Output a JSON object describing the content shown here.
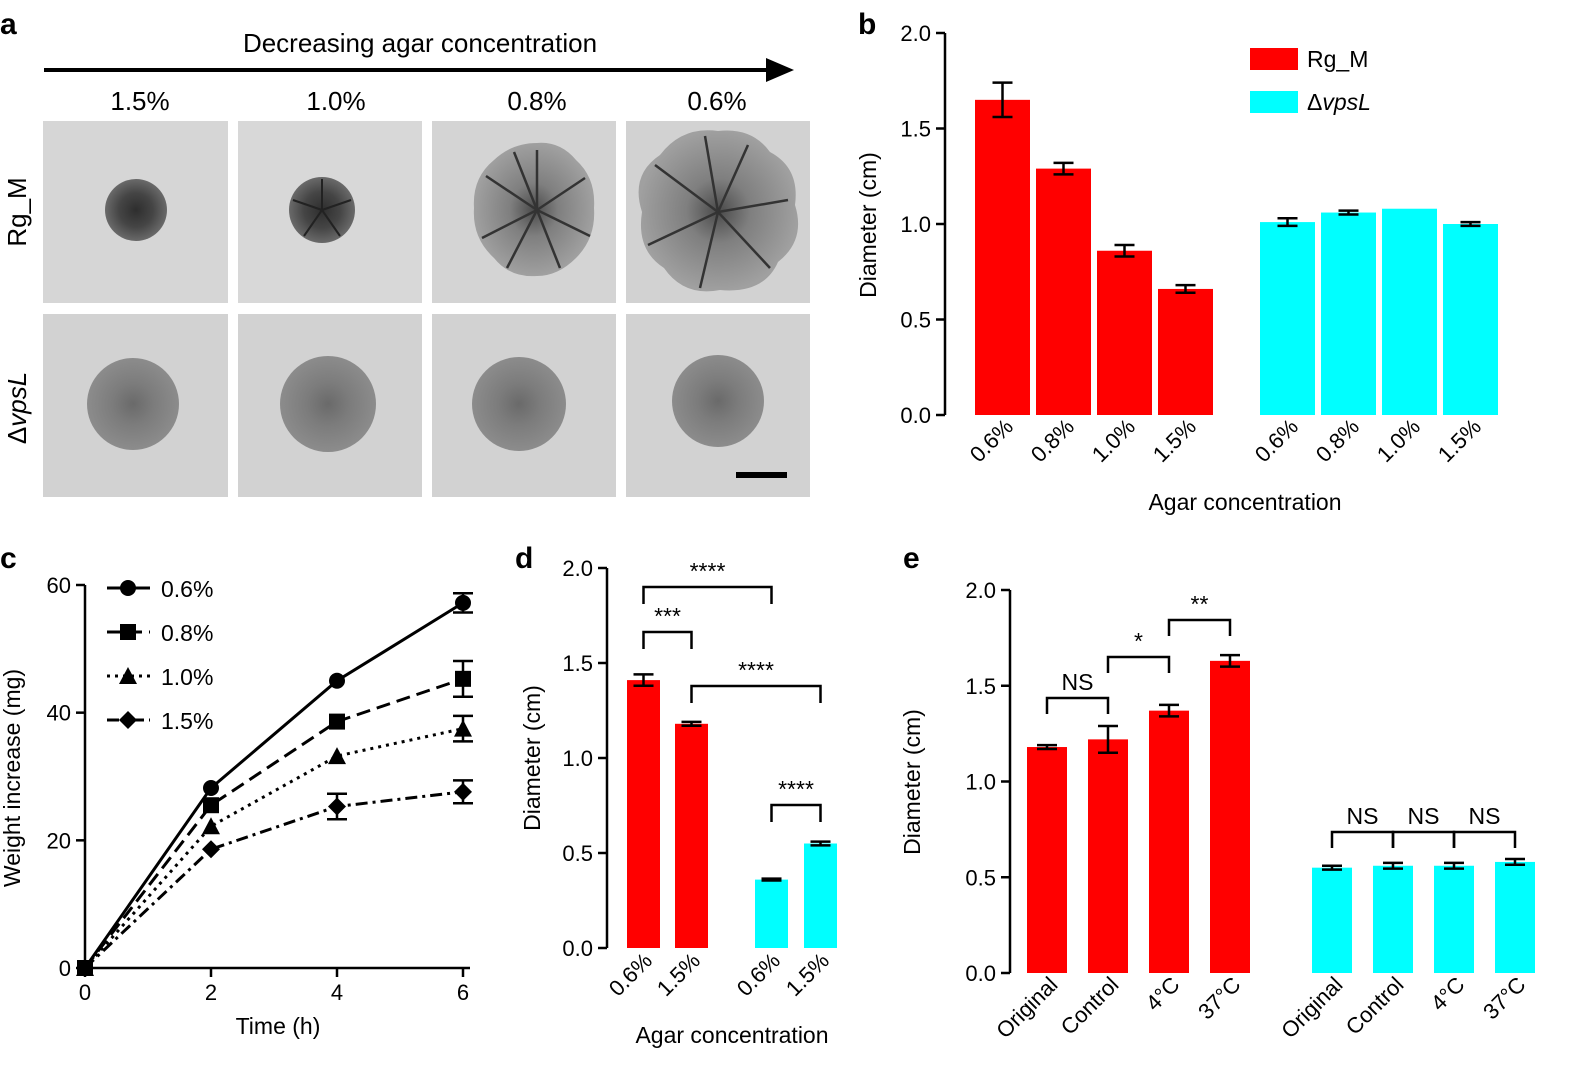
{
  "panel_labels": {
    "a": "a",
    "b": "b",
    "c": "c",
    "d": "d",
    "e": "e"
  },
  "colors": {
    "rg_m": "#ff0000",
    "dvpsl": "#00ffff",
    "plate_bg": "#d4d4d4",
    "axis": "#000000"
  },
  "panel_a": {
    "arrow_label": "Decreasing agar concentration",
    "columns": [
      "1.5%",
      "1.0%",
      "0.8%",
      "0.6%"
    ],
    "rows": [
      {
        "prefix": "",
        "label": "Rg_M",
        "italic": ""
      },
      {
        "prefix": "Δ",
        "label": "",
        "italic": "vpsL"
      }
    ]
  },
  "chart_data": [
    {
      "id": "b",
      "type": "bar",
      "title": "",
      "xlabel": "Agar concentration",
      "ylabel": "Diameter (cm)",
      "ylim": [
        0,
        2.0
      ],
      "yticks": [
        "0.0",
        "0.5",
        "1.0",
        "1.5",
        "2.0"
      ],
      "categories": [
        "0.6%",
        "0.8%",
        "1.0%",
        "1.5%"
      ],
      "legend": [
        {
          "prefix": "",
          "name": "Rg_M",
          "italic": ""
        },
        {
          "prefix": "Δ",
          "name": "",
          "italic": "vpsL"
        }
      ],
      "series": [
        {
          "name": "Rg_M",
          "values": [
            1.65,
            1.29,
            0.86,
            0.66
          ],
          "errors": [
            0.09,
            0.03,
            0.03,
            0.02
          ]
        },
        {
          "name": "ΔvpsL",
          "values": [
            1.01,
            1.06,
            1.08,
            1.0
          ],
          "errors": [
            0.02,
            0.01,
            0,
            0.01
          ]
        }
      ]
    },
    {
      "id": "c",
      "type": "line",
      "title": "",
      "xlabel": "Time (h)",
      "ylabel": "Weight increase (mg)",
      "xlim": [
        0,
        6
      ],
      "ylim": [
        0,
        60
      ],
      "xticks": [
        "0",
        "2",
        "4",
        "6"
      ],
      "yticks": [
        "0",
        "20",
        "40",
        "60"
      ],
      "x": [
        0,
        2,
        4,
        6
      ],
      "series": [
        {
          "name": "0.6%",
          "values": [
            0,
            28.2,
            45,
            57.2
          ],
          "errors": [
            0,
            0,
            0,
            1.5
          ],
          "marker": "circle",
          "dash": ""
        },
        {
          "name": "0.8%",
          "values": [
            0,
            25.5,
            38.6,
            45.3
          ],
          "errors": [
            0,
            0,
            0,
            2.8
          ],
          "marker": "square",
          "dash": "14,7"
        },
        {
          "name": "1.0%",
          "values": [
            0,
            22.2,
            33.2,
            37.5
          ],
          "errors": [
            0,
            0,
            0,
            2
          ],
          "marker": "triangle",
          "dash": "3,5"
        },
        {
          "name": "1.5%",
          "values": [
            0,
            18.6,
            25.3,
            27.6
          ],
          "errors": [
            0,
            0,
            2,
            1.8
          ],
          "marker": "diamond",
          "dash": "12,5,3,5"
        }
      ]
    },
    {
      "id": "d",
      "type": "bar",
      "title": "",
      "xlabel": "Agar concentration",
      "ylabel": "Diameter (cm)",
      "ylim": [
        0,
        2.0
      ],
      "yticks": [
        "0.0",
        "0.5",
        "1.0",
        "1.5",
        "2.0"
      ],
      "categories": [
        "0.6%",
        "1.5%"
      ],
      "series": [
        {
          "name": "Rg_M",
          "values": [
            1.41,
            1.18
          ],
          "errors": [
            0.03,
            0.01
          ]
        },
        {
          "name": "ΔvpsL",
          "values": [
            0.36,
            0.55
          ],
          "errors": [
            0.005,
            0.01
          ]
        }
      ],
      "significance": [
        "****",
        "***",
        "****",
        "****"
      ]
    },
    {
      "id": "e",
      "type": "bar",
      "title": "",
      "xlabel": "",
      "ylabel": "Diameter (cm)",
      "ylim": [
        0,
        2.0
      ],
      "yticks": [
        "0.0",
        "0.5",
        "1.0",
        "1.5",
        "2.0"
      ],
      "categories": [
        "Original",
        "Control",
        "4°C",
        "37°C"
      ],
      "series": [
        {
          "name": "Rg_M",
          "values": [
            1.18,
            1.22,
            1.37,
            1.63
          ],
          "errors": [
            0.01,
            0.07,
            0.03,
            0.03
          ]
        },
        {
          "name": "ΔvpsL",
          "values": [
            0.55,
            0.56,
            0.56,
            0.58
          ],
          "errors": [
            0.01,
            0.015,
            0.015,
            0.015
          ]
        }
      ],
      "significance": [
        "NS",
        "*",
        "**",
        "NS",
        "NS",
        "NS"
      ]
    }
  ]
}
